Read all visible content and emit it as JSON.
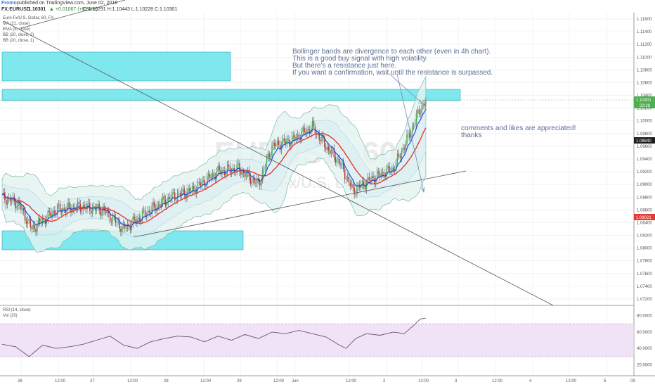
{
  "header": {
    "brand": "Fromo",
    "published": "published on TradingView.com, June 02, 2015",
    "symbol": "FX:EURUSD",
    "last": "1.10301",
    "change": "▲ +0.01067 (+0.98%)",
    "ohlc": "O:1.10291 H:1.10443 L:1.10228 C:1.10301"
  },
  "indicators": {
    "title": "Euro Fx/U.S. Dollar, 60, FX",
    "ma": "MA (21, close)",
    "ema": "EMA (8, close)",
    "bb1": "BB (20, close, 2)",
    "bb2": "BB (20, close, 1)",
    "rsi": "RSI (14, close)",
    "vol": "Vol (20)"
  },
  "watermark": {
    "symbol": "EURUSD, 60",
    "name": "Euro Fx/U.S. Dollar"
  },
  "annotations": {
    "main": [
      "Bollinger bands are divergence to each other (even in 4h chart).",
      "This is a good buy signal with high volatility.",
      "But there's a resistance just here.",
      "If you want a confirmation, wait until the resistance is surpassed."
    ],
    "comments": [
      "comments and likes are appreciated!",
      "thanks"
    ]
  },
  "colors": {
    "candle_up": "#4caf50",
    "candle_down": "#c0392b",
    "ma": "#e53935",
    "ema": "#1e3fd6",
    "bb_fill": "#e3f2f0",
    "zone": "#7fe8ee",
    "rsi_band": "#ead7f2",
    "rsi_line": "#6d4f6d"
  },
  "price_badges": {
    "last": "1.10301",
    "time": "23:28",
    "ema": "1.08840",
    "ma": "1.08021"
  },
  "chart_data": {
    "type": "candlestick",
    "y_axis": {
      "labels": [
        "1.11600",
        "1.11400",
        "1.11200",
        "1.11000",
        "1.10800",
        "1.10600",
        "1.10400",
        "1.10200",
        "1.10000",
        "1.09800",
        "1.09600",
        "1.09400",
        "1.09200",
        "1.09000",
        "1.08800",
        "1.08600",
        "1.08400",
        "1.08200",
        "1.08000",
        "1.07800",
        "1.07600",
        "1.07400",
        "1.07200"
      ],
      "range": [
        1.071,
        1.117
      ]
    },
    "x_axis": {
      "labels": [
        "26",
        "12:00",
        "27",
        "12:00",
        "28",
        "12:00",
        "29",
        "12:00",
        "Jun",
        "12:00",
        "2",
        "12:00",
        "3",
        "12:00",
        "4",
        "12:00",
        "5",
        "09"
      ]
    },
    "rsi_axis": {
      "labels": [
        "80.0000",
        "60.0000",
        "40.0000",
        "20.0000"
      ],
      "band": [
        30,
        70
      ],
      "range": [
        10,
        90
      ]
    },
    "zones": [
      {
        "from": 1.1062,
        "to": 1.1104
      },
      {
        "from": 1.1028,
        "to": 1.1045
      },
      {
        "from": 1.08,
        "to": 1.0828
      }
    ],
    "key_closes": [
      [
        0,
        1.088
      ],
      [
        12,
        1.087
      ],
      [
        22,
        1.083
      ],
      [
        40,
        1.086
      ],
      [
        60,
        1.0865
      ],
      [
        75,
        1.086
      ],
      [
        90,
        1.083
      ],
      [
        110,
        1.086
      ],
      [
        125,
        1.088
      ],
      [
        140,
        1.089
      ],
      [
        160,
        1.092
      ],
      [
        175,
        1.0925
      ],
      [
        190,
        1.09
      ],
      [
        200,
        1.096
      ],
      [
        215,
        1.097
      ],
      [
        230,
        1.099
      ],
      [
        240,
        1.096
      ],
      [
        250,
        1.0935
      ],
      [
        260,
        1.089
      ],
      [
        275,
        1.091
      ],
      [
        290,
        1.0925
      ],
      [
        300,
        1.097
      ],
      [
        310,
        1.102
      ],
      [
        314,
        1.103
      ]
    ],
    "rsi_points": [
      [
        0,
        45
      ],
      [
        10,
        42
      ],
      [
        20,
        30
      ],
      [
        30,
        44
      ],
      [
        40,
        40
      ],
      [
        50,
        42
      ],
      [
        60,
        45
      ],
      [
        70,
        50
      ],
      [
        80,
        55
      ],
      [
        90,
        44
      ],
      [
        100,
        40
      ],
      [
        110,
        48
      ],
      [
        120,
        52
      ],
      [
        130,
        55
      ],
      [
        140,
        54
      ],
      [
        150,
        48
      ],
      [
        160,
        55
      ],
      [
        170,
        50
      ],
      [
        180,
        57
      ],
      [
        190,
        52
      ],
      [
        200,
        60
      ],
      [
        210,
        58
      ],
      [
        220,
        62
      ],
      [
        230,
        58
      ],
      [
        240,
        54
      ],
      [
        250,
        44
      ],
      [
        255,
        40
      ],
      [
        262,
        52
      ],
      [
        270,
        58
      ],
      [
        280,
        56
      ],
      [
        290,
        60
      ],
      [
        298,
        58
      ],
      [
        305,
        68
      ],
      [
        310,
        76
      ],
      [
        314,
        77
      ]
    ]
  }
}
